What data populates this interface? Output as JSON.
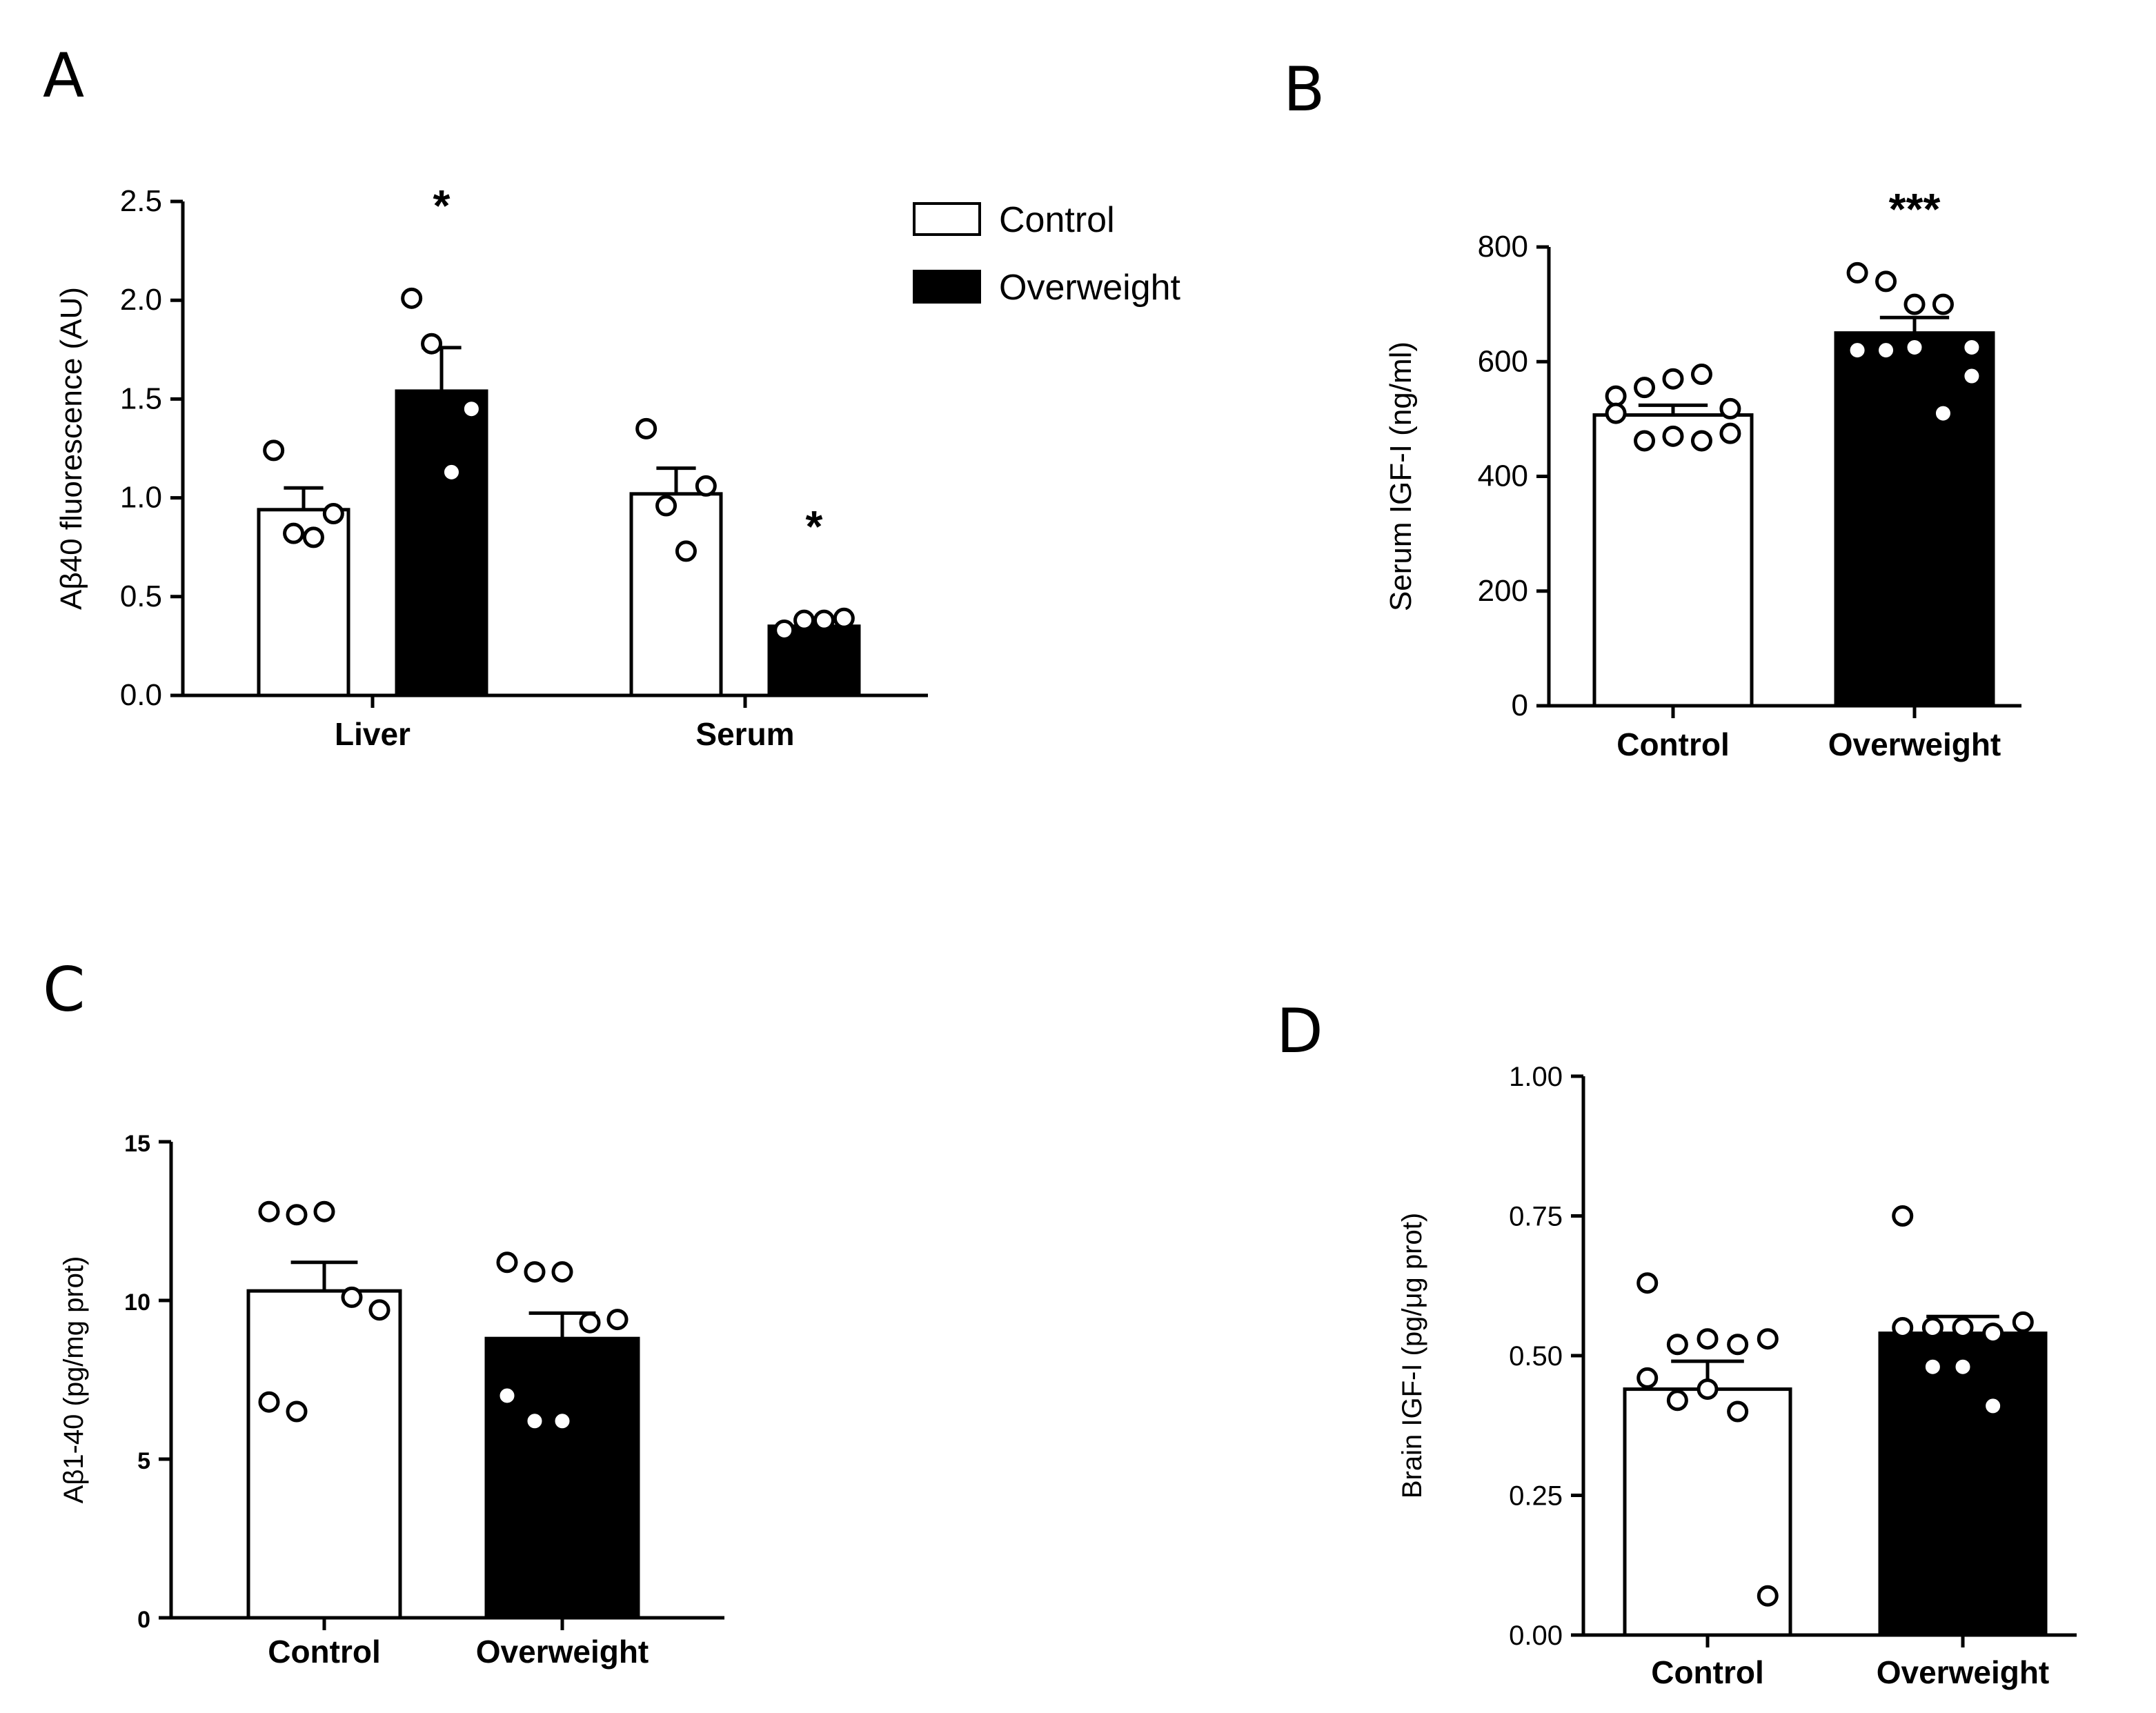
{
  "chart_data": [
    {
      "panel": "A",
      "type": "bar",
      "ylabel": "Aβ40 fluorescence (AU)",
      "ylim": [
        0,
        2.5
      ],
      "yticks": [
        "0.0",
        "0.5",
        "1.0",
        "1.5",
        "2.0",
        "2.5"
      ],
      "categories": [
        "Liver",
        "Serum"
      ],
      "series": [
        {
          "name": "Control",
          "color": "#ffffff",
          "values": [
            0.94,
            1.02
          ],
          "sem": [
            0.11,
            0.13
          ],
          "points": [
            [
              1.24,
              0.82,
              0.8,
              0.92
            ],
            [
              1.35,
              0.96,
              0.73,
              1.06
            ]
          ]
        },
        {
          "name": "Overweight",
          "color": "#000000",
          "values": [
            1.54,
            0.35
          ],
          "sem": [
            0.22,
            0.02
          ],
          "points": [
            [
              2.01,
              1.78,
              1.13,
              1.45
            ],
            [
              0.33,
              0.38,
              0.38,
              0.39
            ]
          ]
        }
      ],
      "significance": [
        "*",
        "*"
      ],
      "legend": [
        "Control",
        "Overweight"
      ]
    },
    {
      "panel": "B",
      "type": "bar",
      "ylabel": "Serum IGF-I (ng/ml)",
      "ylim": [
        0,
        800
      ],
      "yticks": [
        "0",
        "200",
        "400",
        "600",
        "800"
      ],
      "categories": [
        "Control",
        "Overweight"
      ],
      "values": [
        507,
        650
      ],
      "sem": [
        17,
        27
      ],
      "points": [
        [
          540,
          555,
          570,
          578,
          518,
          510,
          462,
          470,
          462,
          475
        ],
        [
          755,
          740,
          700,
          700,
          625,
          620,
          620,
          625,
          510,
          575
        ]
      ],
      "significance": [
        "",
        "***"
      ]
    },
    {
      "panel": "C",
      "type": "bar",
      "ylabel": "Aβ1-40 (pg/mg prot)",
      "ylim": [
        0,
        15
      ],
      "yticks": [
        "0",
        "5",
        "10",
        "15"
      ],
      "categories": [
        "Control",
        "Overweight"
      ],
      "values": [
        10.3,
        8.8
      ],
      "sem": [
        0.9,
        0.8
      ],
      "points": [
        [
          12.8,
          12.7,
          12.8,
          10.1,
          9.7,
          6.8,
          6.5
        ],
        [
          11.2,
          10.9,
          10.9,
          9.3,
          9.4,
          7.0,
          6.2,
          6.2
        ]
      ],
      "significance": [
        "",
        ""
      ]
    },
    {
      "panel": "D",
      "type": "bar",
      "ylabel": "Brain IGF-I  (pg/μg prot)",
      "ylim": [
        0,
        1.0
      ],
      "yticks": [
        "0.00",
        "0.25",
        "0.50",
        "0.75",
        "1.00"
      ],
      "categories": [
        "Control",
        "Overweight"
      ],
      "values": [
        0.44,
        0.54
      ],
      "sem": [
        0.05,
        0.03
      ],
      "points": [
        [
          0.63,
          0.52,
          0.53,
          0.52,
          0.53,
          0.46,
          0.42,
          0.44,
          0.4,
          0.07
        ],
        [
          0.75,
          0.55,
          0.55,
          0.54,
          0.56,
          0.55,
          0.48,
          0.48,
          0.41
        ]
      ],
      "significance": [
        "",
        ""
      ]
    }
  ]
}
